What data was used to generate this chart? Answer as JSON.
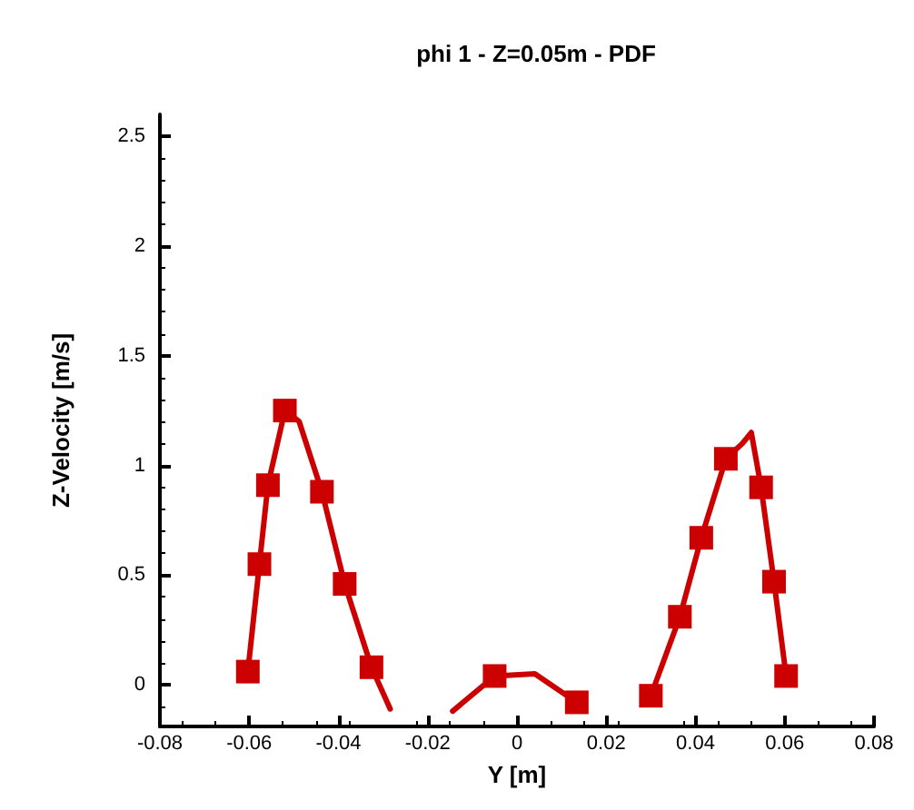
{
  "chart_data": {
    "type": "line",
    "title": "phi 1 - Z=0.05m - PDF",
    "xlabel": "Y [m]",
    "ylabel": "Z-Velocity [m/s]",
    "xlim": [
      -0.08,
      0.08
    ],
    "xticks": [
      -0.08,
      -0.06,
      -0.04,
      -0.02,
      0,
      0.02,
      0.04,
      0.06,
      0.08
    ],
    "ylim": [
      -0.19,
      2.6
    ],
    "yticks": [
      0,
      0.5,
      1,
      1.5,
      2,
      2.5
    ],
    "grid": false,
    "series": [
      {
        "marker": "none",
        "line_style": "solid",
        "color": "#cc0000",
        "x": [
          -0.0603,
          -0.0577,
          -0.0558,
          -0.052,
          -0.0488,
          -0.0437,
          -0.0386,
          -0.0326,
          -0.0284,
          -0.0225,
          -0.019,
          -0.0144,
          -0.005,
          0.004,
          0.0134,
          0.0194,
          0.023,
          0.03,
          0.0365,
          0.0413,
          0.0468,
          0.0505,
          0.0525,
          0.0547,
          0.0576,
          0.0603
        ],
        "values": [
          0.06,
          0.55,
          0.91,
          1.25,
          1.2,
          0.88,
          0.46,
          0.08,
          -0.11,
          null,
          null,
          -0.12,
          0.04,
          0.05,
          -0.08,
          null,
          null,
          -0.05,
          0.31,
          0.67,
          1.03,
          1.1,
          1.15,
          0.9,
          0.47,
          0.04
        ]
      },
      {
        "type": "scatter",
        "marker": "square",
        "color": "#cc0000",
        "x": [
          -0.0603,
          -0.0577,
          -0.0558,
          -0.052,
          -0.0437,
          -0.0386,
          -0.0326,
          -0.005,
          0.0134,
          0.03,
          0.0365,
          0.0413,
          0.0468,
          0.0547,
          0.0576,
          0.0603
        ],
        "values": [
          0.06,
          0.55,
          0.91,
          1.25,
          0.88,
          0.46,
          0.08,
          0.04,
          -0.08,
          -0.05,
          0.31,
          0.67,
          1.03,
          0.9,
          0.47,
          0.04
        ]
      }
    ]
  }
}
